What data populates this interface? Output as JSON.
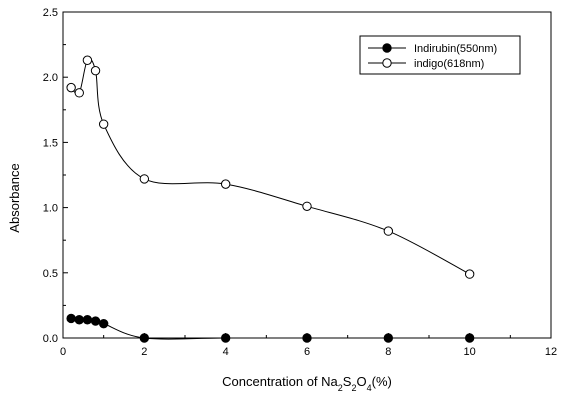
{
  "chart_data": {
    "type": "line",
    "title": "",
    "xlabel": "Concentration of Na2S2O4(%)",
    "xlabel_parts": [
      "Concentration of Na",
      "2",
      "S",
      "2",
      "O",
      "4",
      "(%)"
    ],
    "ylabel": "Absorbance",
    "xlim": [
      0,
      12
    ],
    "ylim": [
      0,
      2.5
    ],
    "xticks": [
      "0",
      "2",
      "4",
      "6",
      "8",
      "10",
      "12"
    ],
    "yticks": [
      "0.0",
      "0.5",
      "1.0",
      "1.5",
      "2.0",
      "2.5"
    ],
    "grid": false,
    "legend_position": "top-right",
    "series": [
      {
        "name": "Indirubin(550nm)",
        "marker": "filled-circle",
        "color": "#000000",
        "x": [
          0.2,
          0.4,
          0.6,
          0.8,
          1,
          2,
          4,
          6,
          8,
          10
        ],
        "y": [
          0.15,
          0.14,
          0.14,
          0.13,
          0.11,
          0.0,
          0.0,
          0.0,
          0.0,
          0.0
        ]
      },
      {
        "name": "indigo(618nm)",
        "marker": "open-circle",
        "color": "#000000",
        "x": [
          0.2,
          0.4,
          0.6,
          0.8,
          1,
          2,
          4,
          6,
          8,
          10
        ],
        "y": [
          1.92,
          1.88,
          2.13,
          2.05,
          1.64,
          1.22,
          1.18,
          1.01,
          0.82,
          0.49
        ]
      }
    ]
  }
}
